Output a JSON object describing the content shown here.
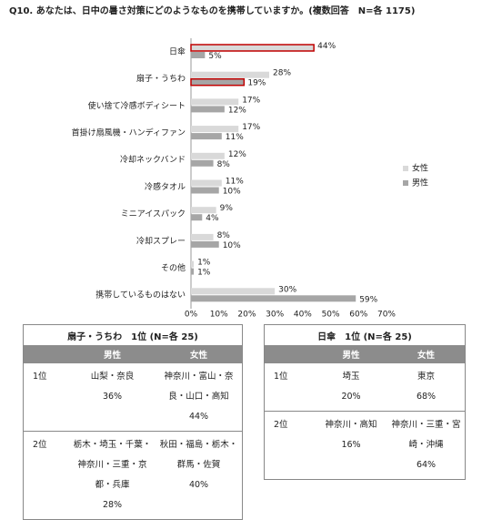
{
  "chart_data": {
    "type": "bar",
    "orientation": "horizontal",
    "title": "Q10. あなたは、日中の暑さ対策にどのようなものを携帯していますか。(複数回答　N=各 1175)",
    "categories": [
      "日傘",
      "扇子・うちわ",
      "使い捨て冷感ボディシート",
      "首掛け扇風機・ハンディファン",
      "冷却ネックバンド",
      "冷感タオル",
      "ミニアイスパック",
      "冷却スプレー",
      "その他",
      "携帯しているものはない"
    ],
    "series": [
      {
        "name": "女性",
        "color": "#d9d9d9",
        "values": [
          44,
          28,
          17,
          17,
          12,
          11,
          9,
          8,
          1,
          30
        ],
        "value_labels": [
          "44%",
          "28%",
          "17%",
          "17%",
          "12%",
          "11%",
          "9%",
          "8%",
          "1%",
          "30%"
        ]
      },
      {
        "name": "男性",
        "color": "#a6a6a6",
        "values": [
          5,
          19,
          12,
          11,
          8,
          10,
          4,
          10,
          1,
          59
        ],
        "value_labels": [
          "5%",
          "19%",
          "12%",
          "11%",
          "8%",
          "10%",
          "4%",
          "10%",
          "1%",
          "59%"
        ]
      }
    ],
    "highlight_color": "#c00000",
    "highlight": [
      {
        "series": 0,
        "index": 0
      },
      {
        "series": 1,
        "index": 1
      }
    ],
    "xlim": [
      0,
      70
    ],
    "xticks": [
      {
        "value": 0,
        "label": "0%"
      },
      {
        "value": 10,
        "label": "10%"
      },
      {
        "value": 20,
        "label": "20%"
      },
      {
        "value": 30,
        "label": "30%"
      },
      {
        "value": 40,
        "label": "40%"
      },
      {
        "value": 50,
        "label": "50%"
      },
      {
        "value": 60,
        "label": "60%"
      },
      {
        "value": 70,
        "label": "70%"
      }
    ],
    "grid": false,
    "legend": "right"
  },
  "tables": [
    {
      "title": "扇子・うちわ　1位 (N=各 25)",
      "headers": [
        "男性",
        "女性"
      ],
      "rows": [
        {
          "rank": "1位",
          "cells": [
            {
              "text": "山梨・奈良",
              "pct": "36%"
            },
            {
              "text": "神奈川・富山・奈良・山口・高知",
              "pct": "44%"
            }
          ]
        },
        {
          "rank": "2位",
          "cells": [
            {
              "text": "栃木・埼玉・千葉・神奈川・三重・京都・兵庫",
              "pct": "28%"
            },
            {
              "text": "秋田・福島・栃木・群馬・佐賀",
              "pct": "40%"
            }
          ]
        }
      ]
    },
    {
      "title": "日傘　1位 (N=各 25)",
      "headers": [
        "男性",
        "女性"
      ],
      "rows": [
        {
          "rank": "1位",
          "cells": [
            {
              "text": "埼玉",
              "pct": "20%"
            },
            {
              "text": "東京",
              "pct": "68%"
            }
          ]
        },
        {
          "rank": "2位",
          "cells": [
            {
              "text": "神奈川・高知",
              "pct": "16%"
            },
            {
              "text": "神奈川・三重・宮崎・沖縄",
              "pct": "64%"
            }
          ]
        }
      ]
    }
  ]
}
